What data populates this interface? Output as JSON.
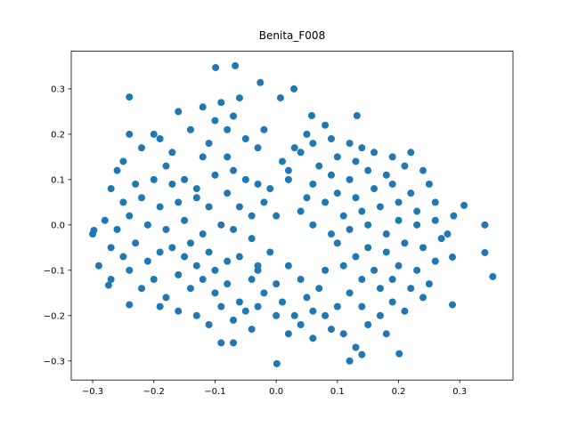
{
  "chart_data": {
    "type": "scatter",
    "title": "Benita_F008",
    "color": "#1f77b4",
    "xlim": [
      -0.335,
      0.387
    ],
    "ylim": [
      -0.342,
      0.383
    ],
    "xticks": [
      {
        "value": -0.3,
        "label": "−0.3"
      },
      {
        "value": -0.2,
        "label": "−0.2"
      },
      {
        "value": -0.1,
        "label": "−0.1"
      },
      {
        "value": 0,
        "label": "0.0"
      },
      0.1,
      0.2,
      0.3
    ],
    "yticks": [
      {
        "value": -0.3,
        "label": "−0.3"
      },
      {
        "value": -0.2,
        "label": "−0.2"
      },
      {
        "value": -0.1,
        "label": "−0.1"
      },
      {
        "value": 0,
        "label": "0.0"
      },
      0.1,
      0.2,
      0.3
    ],
    "x": [
      -0.3,
      -0.298,
      0.354,
      0.341,
      0.341,
      0.307,
      0.288,
      0.288,
      -0.067,
      -0.099,
      0.001,
      0.14,
      0.201,
      -0.24,
      -0.24,
      -0.026,
      0.029,
      0.007,
      0.132,
      0.058,
      -0.274,
      -0.24,
      -0.22,
      -0.2,
      -0.19,
      -0.17,
      -0.16,
      -0.14,
      -0.12,
      -0.11,
      -0.1,
      -0.09,
      -0.08,
      -0.07,
      -0.06,
      -0.05,
      -0.03,
      -0.02,
      -0.08,
      -0.12,
      -0.18,
      -0.25,
      -0.26,
      -0.23,
      -0.2,
      -0.17,
      -0.15,
      -0.13,
      -0.1,
      -0.07,
      -0.05,
      -0.03,
      -0.01,
      0.02,
      0.01,
      0.05,
      -0.27,
      -0.25,
      -0.22,
      -0.19,
      -0.16,
      -0.13,
      -0.11,
      -0.08,
      -0.06,
      -0.04,
      -0.28,
      -0.26,
      -0.24,
      -0.21,
      -0.18,
      -0.15,
      -0.12,
      -0.09,
      -0.07,
      -0.04,
      -0.29,
      -0.27,
      -0.25,
      -0.23,
      -0.21,
      -0.19,
      -0.17,
      -0.15,
      -0.14,
      -0.13,
      -0.11,
      -0.1,
      -0.08,
      -0.06,
      -0.03,
      -0.01,
      -0.27,
      -0.24,
      -0.22,
      -0.2,
      -0.18,
      -0.16,
      -0.14,
      -0.12,
      -0.1,
      -0.08,
      -0.06,
      -0.04,
      -0.02,
      0,
      -0.19,
      -0.16,
      -0.13,
      -0.11,
      -0.09,
      -0.07,
      -0.05,
      -0.03,
      -0.09,
      -0.07,
      -0.04,
      0,
      0.01,
      0.03,
      0.02,
      0.04,
      0.06,
      0.08,
      0.06,
      0.09,
      0.11,
      0.13,
      0.12,
      0.15,
      0.14,
      0.17,
      0.19,
      0.21,
      0.18,
      0.1,
      0.12,
      0.07,
      0.04,
      0.08,
      0.11,
      0.14,
      0.16,
      0.19,
      0.22,
      0.24,
      0.25,
      0.17,
      0.2,
      0.23,
      0.26,
      0.13,
      0.15,
      0.18,
      0.21,
      0.24,
      0.27,
      0.1,
      0.09,
      0.12,
      0.15,
      0.18,
      0.2,
      0.23,
      0.26,
      0.28,
      0.11,
      0.14,
      0.17,
      0.2,
      0.23,
      0.26,
      0.29,
      0.08,
      0.1,
      0.13,
      0.16,
      0.19,
      0.22,
      0.25,
      0.06,
      0.09,
      0.12,
      0.15,
      0.18,
      0.21,
      0.24,
      0.07,
      0.1,
      0.13,
      0.16,
      0.19,
      0.22,
      0.04,
      0.06,
      0.09,
      0.12,
      0.14,
      0.05,
      0.08,
      0.03,
      0.02,
      0.04,
      0.06,
      -0.02,
      0,
      -0.03,
      0.02,
      0.05
    ],
    "values": [
      -0.02,
      -0.012,
      -0.114,
      0,
      -0.061,
      0.043,
      -0.071,
      -0.176,
      0.351,
      0.347,
      -0.306,
      -0.286,
      -0.284,
      0.282,
      -0.176,
      0.314,
      0.3,
      0.28,
      0.241,
      0.241,
      -0.133,
      0.2,
      0.17,
      0.2,
      0.19,
      0.16,
      0.25,
      0.21,
      0.26,
      0.18,
      0.23,
      0.27,
      0.21,
      0.24,
      0.28,
      0.19,
      0.17,
      0.21,
      0.15,
      0.15,
      0.13,
      0.14,
      0.12,
      0.09,
      0.1,
      0.09,
      0.1,
      0.08,
      0.11,
      0.12,
      0.1,
      0.09,
      0.08,
      0.1,
      0.14,
      0.06,
      0.08,
      0.05,
      0.06,
      0.04,
      0.05,
      0.06,
      0.04,
      0.07,
      0.04,
      0.02,
      0.01,
      -0.01,
      0.02,
      0,
      -0.01,
      0.01,
      -0.02,
      0,
      -0.01,
      -0.03,
      -0.09,
      -0.05,
      -0.07,
      -0.04,
      -0.08,
      -0.06,
      -0.05,
      -0.07,
      -0.04,
      -0.09,
      -0.06,
      -0.1,
      -0.08,
      -0.07,
      -0.09,
      -0.06,
      -0.12,
      -0.1,
      -0.14,
      -0.12,
      -0.16,
      -0.11,
      -0.14,
      -0.12,
      -0.15,
      -0.13,
      -0.17,
      -0.12,
      -0.15,
      -0.13,
      -0.18,
      -0.19,
      -0.2,
      -0.22,
      -0.18,
      -0.21,
      -0.19,
      -0.18,
      -0.26,
      -0.26,
      -0.23,
      -0.2,
      -0.17,
      -0.2,
      -0.24,
      -0.22,
      -0.19,
      -0.2,
      -0.25,
      -0.23,
      -0.24,
      -0.27,
      -0.3,
      -0.22,
      -0.18,
      -0.2,
      -0.17,
      -0.19,
      -0.24,
      -0.18,
      -0.15,
      -0.14,
      -0.12,
      -0.1,
      -0.09,
      -0.12,
      -0.1,
      -0.12,
      -0.14,
      -0.16,
      -0.13,
      -0.14,
      -0.09,
      -0.1,
      -0.08,
      -0.07,
      -0.05,
      -0.06,
      -0.04,
      -0.05,
      -0.03,
      -0.04,
      -0.02,
      -0.01,
      0,
      -0.02,
      0.01,
      0,
      0.01,
      -0.02,
      0.02,
      0.03,
      0.04,
      0.05,
      0.03,
      0.05,
      0.02,
      0.05,
      0.07,
      0.06,
      0.08,
      0.09,
      0.07,
      0.09,
      0.09,
      0.11,
      0.1,
      0.12,
      0.11,
      0.13,
      0.12,
      0.13,
      0.15,
      0.14,
      0.16,
      0.15,
      0.16,
      0.16,
      0.18,
      0.19,
      0.18,
      0.17,
      0.2,
      0.22,
      0.17,
      0.12,
      0.03,
      0,
      0.05,
      0.02,
      -0.1,
      -0.09,
      -0.16
    ]
  }
}
